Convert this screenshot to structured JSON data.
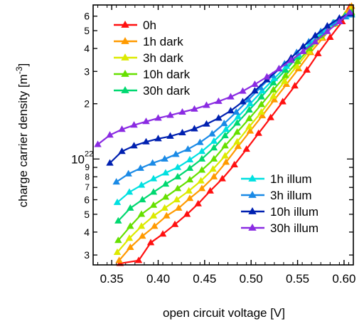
{
  "chart_data": {
    "type": "line",
    "xlabel": "open circuit voltage [V]",
    "ylabel": "charge carrier density [m",
    "ylabel_sup": "-3",
    "ylabel_close": "]",
    "xlim": [
      0.33,
      0.61
    ],
    "ylim": [
      2.65e+21,
      6.9e+22
    ],
    "yscale": "log",
    "x_ticks": [
      "0.35",
      "0.40",
      "0.45",
      "0.50",
      "0.55",
      "0.60"
    ],
    "x_tick_values": [
      0.35,
      0.4,
      0.45,
      0.5,
      0.55,
      0.6
    ],
    "y_major_ticks": [
      {
        "value": 3e+21,
        "label": "3"
      },
      {
        "value": 4e+21,
        "label": "4"
      },
      {
        "value": 5e+21,
        "label": "5"
      },
      {
        "value": 6e+21,
        "label": "6"
      },
      {
        "value": 7e+21,
        "label": "7"
      },
      {
        "value": 8e+21,
        "label": "8"
      },
      {
        "value": 9e+21,
        "label": "9"
      },
      {
        "value": 1e+22,
        "label": "10",
        "sup": "22"
      },
      {
        "value": 2e+22,
        "label": "2"
      },
      {
        "value": 3e+22,
        "label": "3"
      },
      {
        "value": 4e+22,
        "label": "4"
      },
      {
        "value": 5e+22,
        "label": "5"
      },
      {
        "value": 6e+22,
        "label": "6"
      }
    ],
    "legend_dark_placement": "top-left",
    "legend_illum_placement": "bottom-right",
    "grid": false,
    "series": [
      {
        "name": "0h",
        "group": "dark",
        "color": "#ff1010",
        "x": [
          0.359,
          0.379,
          0.392,
          0.405,
          0.418,
          0.431,
          0.443,
          0.456,
          0.469,
          0.482,
          0.495,
          0.508,
          0.521,
          0.534,
          0.547,
          0.56,
          0.572,
          0.585,
          0.598,
          0.606
        ],
        "y": [
          2.7e+21,
          2.8e+21,
          3.5e+21,
          3.9e+21,
          4.4e+21,
          5e+21,
          5.7e+21,
          6.7e+21,
          7.8e+21,
          9.3e+21,
          1.13e+22,
          1.38e+22,
          1.68e+22,
          2.05e+22,
          2.5e+22,
          3.05e+22,
          3.75e+22,
          4.6e+22,
          5.6e+22,
          6.7e+22
        ]
      },
      {
        "name": "1h dark",
        "group": "dark",
        "color": "#ff9a00",
        "x": [
          0.358,
          0.37,
          0.383,
          0.396,
          0.409,
          0.422,
          0.434,
          0.447,
          0.46,
          0.473,
          0.486,
          0.499,
          0.512,
          0.525,
          0.538,
          0.551,
          0.564,
          0.577,
          0.59,
          0.603,
          0.608
        ],
        "y": [
          2.8e+21,
          3.3e+21,
          3.8e+21,
          4.3e+21,
          4.9e+21,
          5.4e+21,
          6.1e+21,
          6.9e+21,
          8e+21,
          9.6e+21,
          1.17e+22,
          1.42e+22,
          1.72e+22,
          2.1e+22,
          2.55e+22,
          3.1e+22,
          3.8e+22,
          4.55e+22,
          5.45e+22,
          6.3e+22,
          6.8e+22
        ]
      },
      {
        "name": "3h dark",
        "group": "dark",
        "color": "#dcea00",
        "x": [
          0.356,
          0.369,
          0.382,
          0.395,
          0.407,
          0.42,
          0.433,
          0.446,
          0.459,
          0.472,
          0.485,
          0.498,
          0.511,
          0.524,
          0.536,
          0.549,
          0.562,
          0.575,
          0.588,
          0.601,
          0.607
        ],
        "y": [
          3.1e+21,
          3.7e+21,
          4.3e+21,
          4.9e+21,
          5.4e+21,
          6e+21,
          6.7e+21,
          7.6e+21,
          8.8e+21,
          1.04e+22,
          1.24e+22,
          1.5e+22,
          1.8e+22,
          2.2e+22,
          2.65e+22,
          3.2e+22,
          3.85e+22,
          4.6e+22,
          5.4e+22,
          6.1e+22,
          6.5e+22
        ]
      },
      {
        "name": "10h dark",
        "group": "dark",
        "color": "#66e000",
        "x": [
          0.357,
          0.37,
          0.382,
          0.395,
          0.408,
          0.421,
          0.434,
          0.447,
          0.46,
          0.472,
          0.485,
          0.498,
          0.511,
          0.524,
          0.537,
          0.55,
          0.563,
          0.575,
          0.588,
          0.601,
          0.608
        ],
        "y": [
          3.6e+21,
          4.3e+21,
          5e+21,
          5.6e+21,
          6.2e+21,
          6.9e+21,
          7.7e+21,
          8.7e+21,
          1e+22,
          1.18e+22,
          1.4e+22,
          1.66e+22,
          1.98e+22,
          2.38e+22,
          2.85e+22,
          3.4e+22,
          4e+22,
          4.7e+22,
          5.45e+22,
          6.05e+22,
          6.3e+22
        ]
      },
      {
        "name": "30h dark",
        "group": "dark",
        "color": "#00d870",
        "x": [
          0.357,
          0.37,
          0.383,
          0.395,
          0.408,
          0.421,
          0.434,
          0.447,
          0.46,
          0.472,
          0.485,
          0.498,
          0.511,
          0.524,
          0.537,
          0.55,
          0.563,
          0.576,
          0.589,
          0.601,
          0.608
        ],
        "y": [
          4.6e+21,
          5.4e+21,
          6e+21,
          6.6e+21,
          7.3e+21,
          8e+21,
          8.9e+21,
          1e+22,
          1.15e+22,
          1.34e+22,
          1.57e+22,
          1.85e+22,
          2.18e+22,
          2.6e+22,
          3.05e+22,
          3.6e+22,
          4.2e+22,
          4.85e+22,
          5.5e+22,
          6e+22,
          6.2e+22
        ]
      },
      {
        "name": "1h illum",
        "group": "illum",
        "color": "#00e0e0",
        "x": [
          0.356,
          0.369,
          0.382,
          0.395,
          0.408,
          0.421,
          0.434,
          0.447,
          0.46,
          0.473,
          0.486,
          0.499,
          0.512,
          0.525,
          0.538,
          0.551,
          0.564,
          0.577,
          0.59,
          0.602,
          0.608
        ],
        "y": [
          5.8e+21,
          6.6e+21,
          7.2e+21,
          7.8e+21,
          8.4e+21,
          9e+21,
          9.9e+21,
          1.1e+22,
          1.25e+22,
          1.45e+22,
          1.7e+22,
          2e+22,
          2.35e+22,
          2.75e+22,
          3.2e+22,
          3.7e+22,
          4.3e+22,
          4.9e+22,
          5.5e+22,
          5.95e+22,
          6.1e+22
        ]
      },
      {
        "name": "3h illum",
        "group": "illum",
        "color": "#1a8ae6",
        "x": [
          0.355,
          0.368,
          0.381,
          0.394,
          0.407,
          0.419,
          0.432,
          0.445,
          0.458,
          0.471,
          0.484,
          0.497,
          0.51,
          0.523,
          0.536,
          0.549,
          0.562,
          0.575,
          0.588,
          0.601,
          0.608
        ],
        "y": [
          7.5e+21,
          8.3e+21,
          8.9e+21,
          9.5e+21,
          1e+22,
          1.06e+22,
          1.13e+22,
          1.23e+22,
          1.37e+22,
          1.56e+22,
          1.8e+22,
          2.1e+22,
          2.45e+22,
          2.85e+22,
          3.3e+22,
          3.8e+22,
          4.35e+22,
          4.95e+22,
          5.5e+22,
          5.95e+22,
          6.1e+22
        ]
      },
      {
        "name": "10h illum",
        "group": "illum",
        "color": "#0020b0",
        "x": [
          0.348,
          0.361,
          0.374,
          0.387,
          0.4,
          0.413,
          0.426,
          0.439,
          0.452,
          0.465,
          0.478,
          0.491,
          0.504,
          0.517,
          0.53,
          0.543,
          0.556,
          0.569,
          0.582,
          0.595,
          0.606
        ],
        "y": [
          9.5e+21,
          1.1e+22,
          1.18e+22,
          1.24e+22,
          1.29e+22,
          1.33e+22,
          1.39e+22,
          1.46e+22,
          1.55e+22,
          1.67e+22,
          1.83e+22,
          2.05e+22,
          2.35e+22,
          2.7e+22,
          3.1e+22,
          3.55e+22,
          4.1e+22,
          4.7e+22,
          5.3e+22,
          5.85e+22,
          6.2e+22
        ]
      },
      {
        "name": "30h illum",
        "group": "illum",
        "color": "#8a2be2",
        "x": [
          0.335,
          0.348,
          0.361,
          0.374,
          0.387,
          0.4,
          0.413,
          0.426,
          0.439,
          0.452,
          0.465,
          0.478,
          0.491,
          0.504,
          0.517,
          0.53,
          0.543,
          0.556,
          0.569,
          0.582,
          0.595,
          0.606
        ],
        "y": [
          1.2e+22,
          1.35e+22,
          1.45e+22,
          1.53e+22,
          1.6e+22,
          1.67e+22,
          1.73e+22,
          1.8e+22,
          1.87e+22,
          1.96e+22,
          2.06e+22,
          2.18e+22,
          2.34e+22,
          2.55e+22,
          2.8e+22,
          3.1e+22,
          3.45e+22,
          3.85e+22,
          4.35e+22,
          4.95e+22,
          5.6e+22,
          6.3e+22
        ]
      }
    ]
  }
}
